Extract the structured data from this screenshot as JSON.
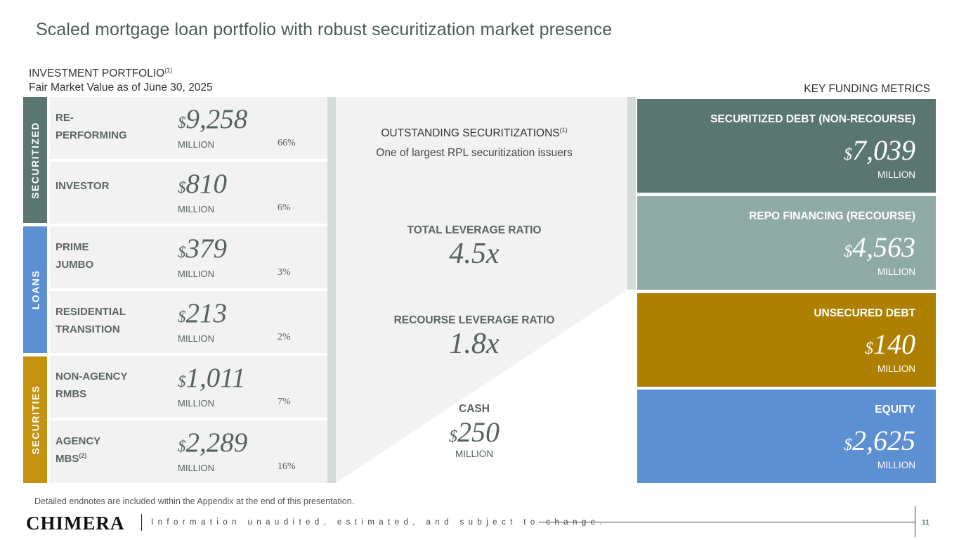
{
  "title": "Scaled mortgage loan portfolio with robust securitization market presence",
  "portfolio": {
    "heading": "INVESTMENT PORTFOLIO",
    "heading_note": "(1)",
    "subheading": "Fair Market Value as of June 30, 2025"
  },
  "categories": {
    "securitized": "SECURITIZED",
    "loans": "LOANS",
    "securities": "SECURITIES"
  },
  "rows": [
    {
      "name": "RE-PERFORMING",
      "note": "",
      "currency": "$",
      "value": "9,258",
      "unit": "MILLION",
      "pct": "66%"
    },
    {
      "name": "INVESTOR",
      "note": "",
      "currency": "$",
      "value": "810",
      "unit": "MILLION",
      "pct": "6%"
    },
    {
      "name": "PRIME JUMBO",
      "note": "",
      "currency": "$",
      "value": "379",
      "unit": "MILLION",
      "pct": "3%"
    },
    {
      "name": "RESIDENTIAL TRANSITION",
      "note": "",
      "currency": "$",
      "value": "213",
      "unit": "MILLION",
      "pct": "2%"
    },
    {
      "name": "NON-AGENCY RMBS",
      "note": "",
      "currency": "$",
      "value": "1,011",
      "unit": "MILLION",
      "pct": "7%"
    },
    {
      "name": "AGENCY MBS",
      "note": "(2)",
      "currency": "$",
      "value": "2,289",
      "unit": "MILLION",
      "pct": "16%"
    }
  ],
  "middle": {
    "outstanding_label": "OUTSTANDING SECURITIZATIONS",
    "outstanding_note": "(1)",
    "outstanding_sub": "One of largest RPL securitization issuers",
    "total_leverage_label": "TOTAL LEVERAGE RATIO",
    "total_leverage_value": "4.5x",
    "recourse_leverage_label": "RECOURSE LEVERAGE RATIO",
    "recourse_leverage_value": "1.8x",
    "cash_label": "CASH",
    "cash_currency": "$",
    "cash_value": "250",
    "cash_unit": "MILLION"
  },
  "key_funding": {
    "heading": "KEY FUNDING METRICS",
    "items": [
      {
        "label": "SECURITIZED DEBT (NON-RECOURSE)",
        "currency": "$",
        "value": "7,039",
        "unit": "MILLION",
        "color": "#5b7570"
      },
      {
        "label": "REPO FINANCING (RECOURSE)",
        "currency": "$",
        "value": "4,563",
        "unit": "MILLION",
        "color": "#90aaa6"
      },
      {
        "label": "UNSECURED DEBT",
        "currency": "$",
        "value": "140",
        "unit": "MILLION",
        "color": "#ad8000"
      },
      {
        "label": "EQUITY",
        "currency": "$",
        "value": "2,625",
        "unit": "MILLION",
        "color": "#5d8fd3"
      }
    ]
  },
  "footer": {
    "endnote": "Detailed endnotes are included within the Appendix at the end of this presentation.",
    "logo": "CHIMERA",
    "disclaimer": "Information unaudited, estimated, and subject to change.",
    "page_number": "11"
  }
}
